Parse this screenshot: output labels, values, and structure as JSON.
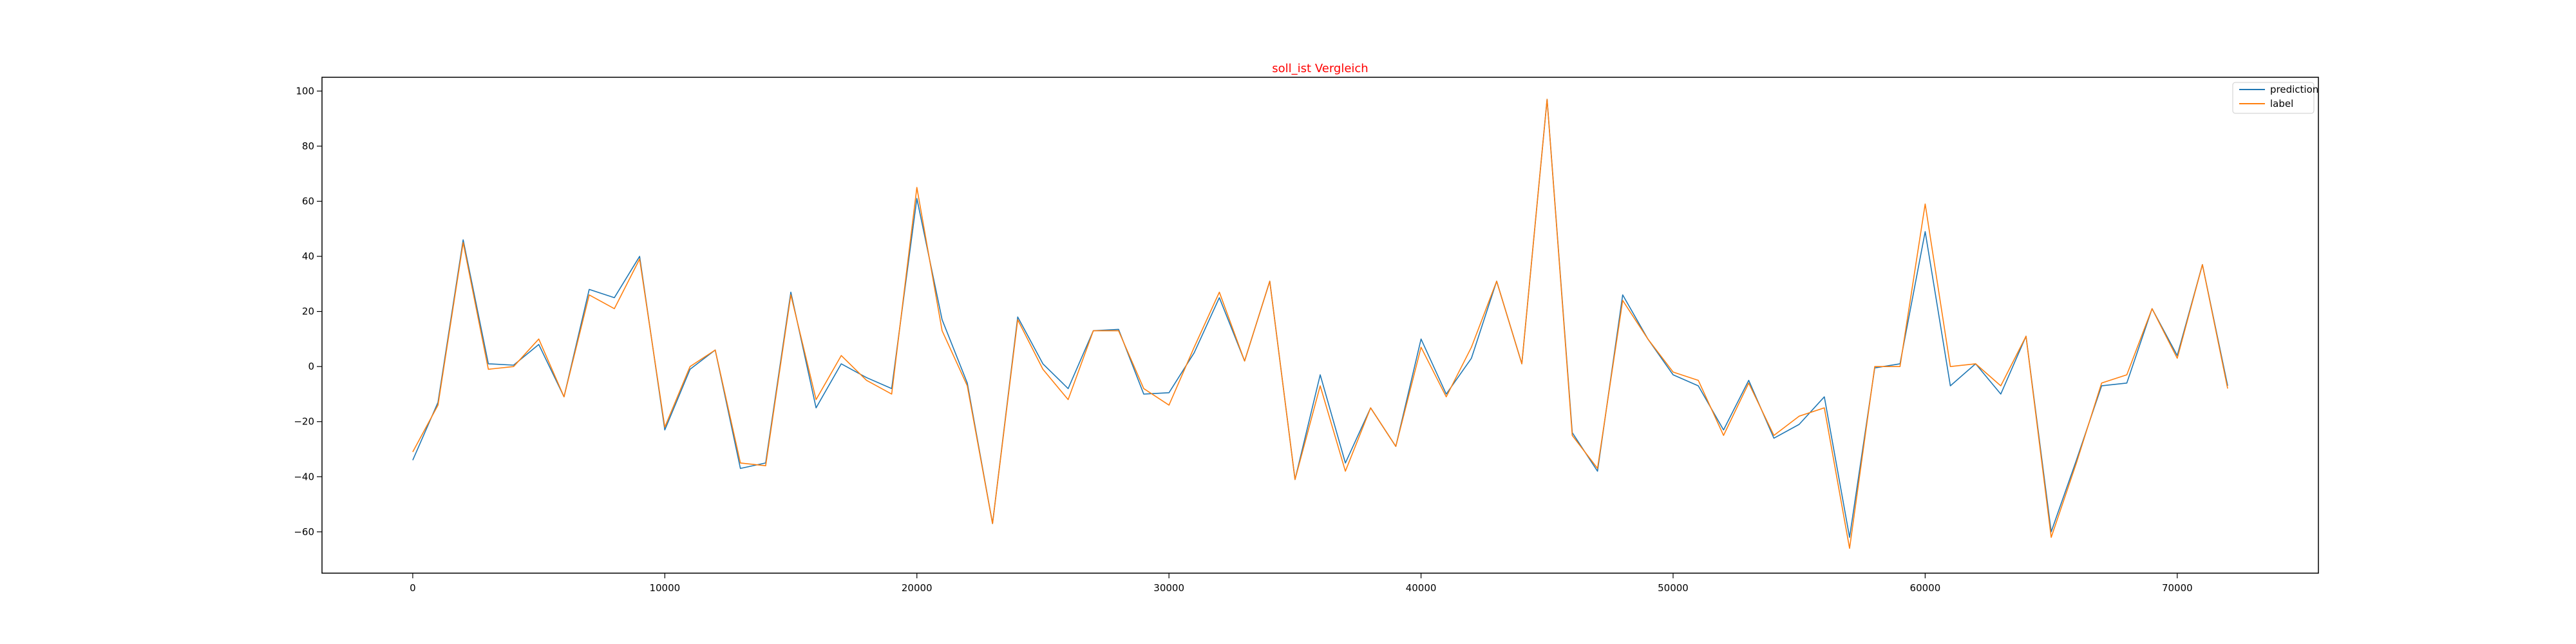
{
  "chart_data": {
    "type": "line",
    "title": "soll_ist Vergleich",
    "title_color": "#ff0000",
    "xlabel": "",
    "ylabel": "",
    "xlim": [
      -3600,
      75600
    ],
    "ylim": [
      -75,
      105
    ],
    "xticks": [
      0,
      10000,
      20000,
      30000,
      40000,
      50000,
      60000,
      70000
    ],
    "yticks": [
      -60,
      -40,
      -20,
      0,
      20,
      40,
      60,
      80,
      100
    ],
    "grid": false,
    "legend_position": "top-right",
    "x": [
      0,
      1000,
      2000,
      3000,
      4000,
      5000,
      6000,
      7000,
      8000,
      9000,
      10000,
      11000,
      12000,
      13000,
      14000,
      15000,
      16000,
      17000,
      18000,
      19000,
      20000,
      21000,
      22000,
      23000,
      24000,
      25000,
      26000,
      27000,
      28000,
      29000,
      30000,
      31000,
      32000,
      33000,
      34000,
      35000,
      36000,
      37000,
      38000,
      39000,
      40000,
      41000,
      42000,
      43000,
      44000,
      45000,
      46000,
      47000,
      48000,
      49000,
      50000,
      51000,
      52000,
      53000,
      54000,
      55000,
      56000,
      57000,
      58000,
      59000,
      60000,
      61000,
      62000,
      63000,
      64000,
      65000,
      66000,
      67000,
      68000,
      69000,
      70000,
      71000,
      72000
    ],
    "series": [
      {
        "name": "prediction",
        "color": "#1f77b4",
        "values": [
          -34,
          -13,
          46,
          1,
          0.5,
          8,
          -11,
          28,
          25,
          40,
          -23,
          -1,
          6,
          -37,
          -35,
          27,
          -15,
          1,
          -4,
          -8,
          61,
          17,
          -6,
          -57,
          18,
          1,
          -8,
          13,
          13.5,
          -10,
          -9.5,
          5,
          25,
          2,
          31,
          -41,
          -3,
          -35,
          -15,
          -29,
          10,
          -10,
          3,
          31,
          1,
          97,
          -24,
          -38,
          26,
          10,
          -3,
          -7,
          -23,
          -5,
          -26,
          -21,
          -11,
          -62,
          -0.5,
          1,
          49,
          -7,
          1,
          -10,
          11,
          -60,
          -34,
          -7,
          -6,
          21,
          4,
          37,
          -7
        ]
      },
      {
        "name": "label",
        "color": "#ff7f0e",
        "values": [
          -31,
          -14,
          45,
          -1,
          0,
          10,
          -11,
          26,
          21,
          39,
          -22,
          0,
          6,
          -35,
          -36,
          26,
          -12,
          4,
          -5,
          -10,
          65,
          13,
          -7,
          -57,
          17,
          -1,
          -12,
          13,
          13,
          -8,
          -14,
          7,
          27,
          2,
          31,
          -41,
          -7,
          -38,
          -15,
          -29,
          7,
          -11,
          7,
          31,
          1,
          97,
          -25,
          -37,
          24,
          10,
          -2,
          -5,
          -25,
          -6,
          -25,
          -18,
          -15,
          -66,
          0,
          0,
          59,
          0,
          1,
          -7,
          11,
          -62,
          -35,
          -6,
          -3,
          21,
          3,
          37,
          -8
        ]
      }
    ]
  }
}
